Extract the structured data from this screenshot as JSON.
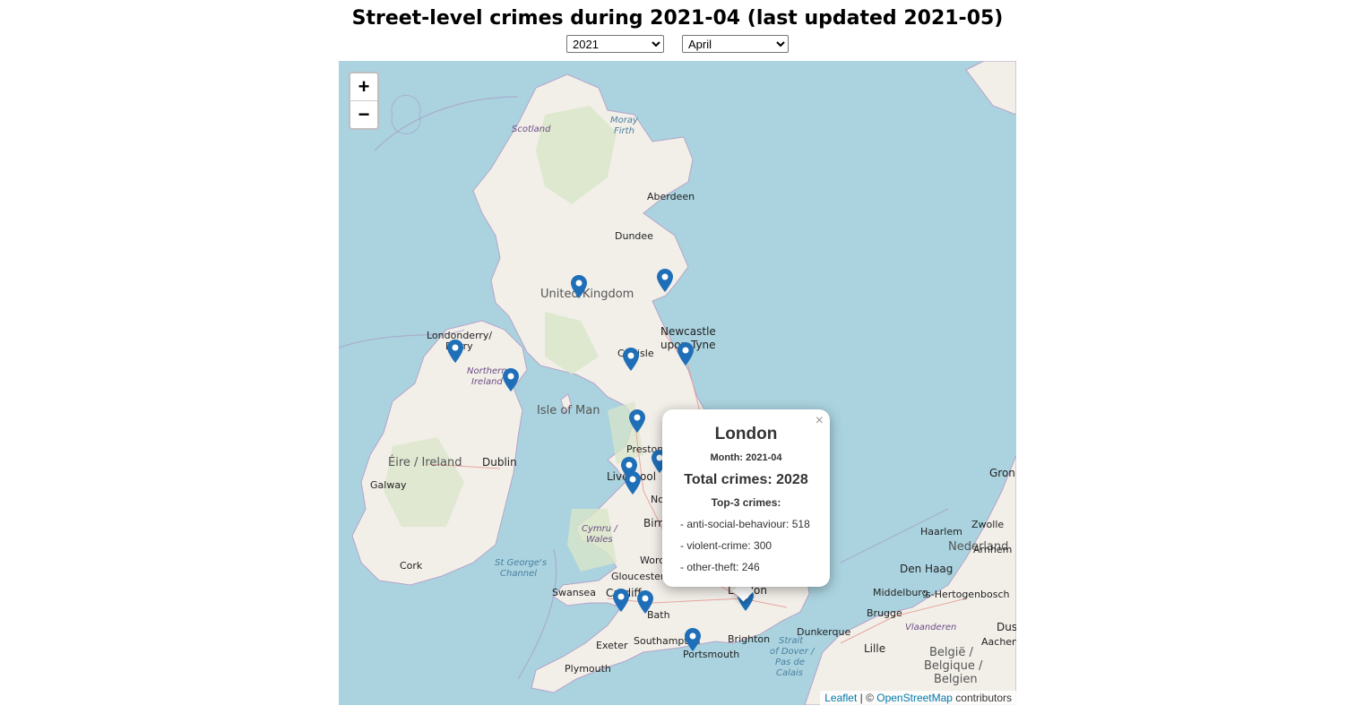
{
  "title": "Street-level crimes during 2021-04 (last updated 2021-05)",
  "controls": {
    "year": "2021",
    "month": "April"
  },
  "map": {
    "zoom_in": "+",
    "zoom_out": "−",
    "labels": {
      "scotland": "Scotland",
      "moray_firth": "Moray",
      "moray_firth2": "Firth",
      "aberdeen": "Aberdeen",
      "dundee": "Dundee",
      "uk": "United Kingdom",
      "newcastle1": "Newcastle",
      "newcastle2": "upon Tyne",
      "carlisle": "Carlisle",
      "londonderry1": "Londonderry/",
      "londonderry2": "Derry",
      "ni1": "Northern",
      "ni2": "Ireland",
      "isle_of_man": "Isle of Man",
      "preston": "Preston",
      "liverpool": "Liverpool",
      "eire": "Éire / Ireland",
      "dublin": "Dublin",
      "galway": "Galway",
      "cymru1": "Cymru /",
      "cymru2": "Wales",
      "birmingham": "Birmingham",
      "worcester": "Worcester",
      "gloucester": "Gloucester",
      "cork": "Cork",
      "st_georges1": "St George's",
      "st_georges2": "Channel",
      "swansea": "Swansea",
      "cardiff": "Cardiff",
      "bath": "Bath",
      "london": "London",
      "brighton": "Brighton",
      "southampton": "Southampton",
      "portsmouth": "Portsmouth",
      "exeter": "Exeter",
      "plymouth": "Plymouth",
      "strait1": "Strait",
      "strait2": "of Dover /",
      "strait3": "Pas de",
      "strait4": "Calais",
      "dunkerque": "Dunkerque",
      "lille": "Lille",
      "brugge": "Brugge",
      "middelburg": "Middelburg",
      "hertogenbosch": "'s-Hertogenbosch",
      "den_haag": "Den Haag",
      "nederland": "Nederland",
      "haarlem": "Haarlem",
      "zwolle": "Zwolle",
      "arnhem": "Arnhem",
      "groningen": "Groni",
      "vlaanderen": "Vlaanderen",
      "belgie1": "België /",
      "belgie2": "Belgique /",
      "belgie3": "Belgien",
      "aachen": "Aachen",
      "dus": "Dus",
      "nottingham": "No"
    },
    "marker_icon": "map-marker-icon"
  },
  "popup": {
    "city": "London",
    "month": "Month: 2021-04",
    "total": "Total crimes: 2028",
    "top_label": "Top-3 crimes:",
    "items": [
      "- anti-social-behaviour: 518",
      "- violent-crime: 300",
      "- other-theft: 246"
    ],
    "close": "×"
  },
  "attribution": {
    "leaflet": "Leaflet",
    "sep": " | © ",
    "osm": "OpenStreetMap",
    "rest": " contributors"
  },
  "colors": {
    "sea": "#aad3df",
    "land": "#f2efe9",
    "marker": "#1f6fb8"
  }
}
